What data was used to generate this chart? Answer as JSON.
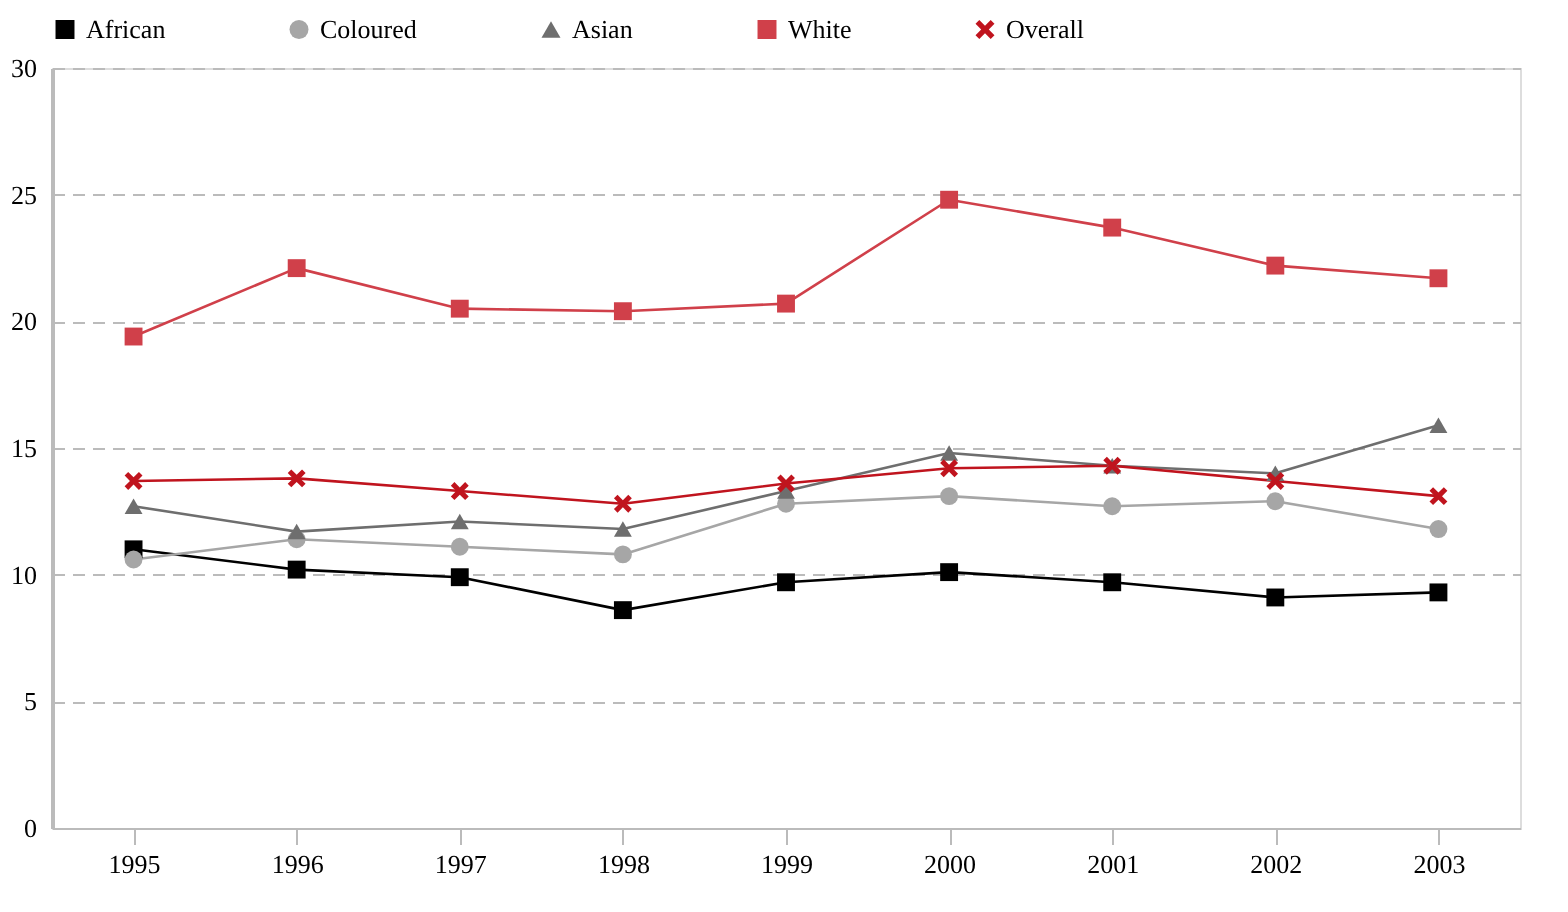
{
  "chart_data": {
    "type": "line",
    "categories": [
      "1995",
      "1996",
      "1997",
      "1998",
      "1999",
      "2000",
      "2001",
      "2002",
      "2003"
    ],
    "series": [
      {
        "name": "African",
        "color": "#000000",
        "marker": "square",
        "values": [
          11.0,
          10.2,
          9.9,
          8.6,
          9.7,
          10.1,
          9.7,
          9.1,
          9.3
        ]
      },
      {
        "name": "Coloured",
        "color": "#a6a6a6",
        "marker": "circle",
        "values": [
          10.6,
          11.4,
          11.1,
          10.8,
          12.8,
          13.1,
          12.7,
          12.9,
          11.8
        ]
      },
      {
        "name": "Asian",
        "color": "#6e6e6e",
        "marker": "triangle",
        "values": [
          12.7,
          11.7,
          12.1,
          11.8,
          13.3,
          14.8,
          14.3,
          14.0,
          15.9
        ]
      },
      {
        "name": "White",
        "color": "#d0404a",
        "marker": "square",
        "values": [
          19.4,
          22.1,
          20.5,
          20.4,
          20.7,
          24.8,
          23.7,
          22.2,
          21.7
        ]
      },
      {
        "name": "Overall",
        "color": "#c0141e",
        "marker": "cross",
        "values": [
          13.7,
          13.8,
          13.3,
          12.8,
          13.6,
          14.2,
          14.3,
          13.7,
          13.1
        ]
      }
    ],
    "ylim": [
      0,
      30
    ],
    "yticks": [
      0,
      5,
      10,
      15,
      20,
      25,
      30
    ],
    "grid": "y",
    "legend": "top",
    "line_style": "solid"
  }
}
